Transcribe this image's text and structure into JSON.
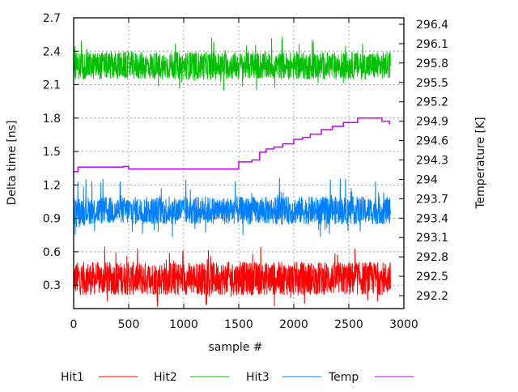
{
  "chart_data": {
    "type": "line",
    "xlabel": "sample #",
    "ylabel": "Delta time [ns]",
    "y2label": "Temperature [K]",
    "xlim": [
      0,
      3000
    ],
    "ylim": [
      0.09,
      2.7
    ],
    "y2lim": [
      292.0,
      296.5
    ],
    "xticks": [
      "0",
      "500",
      "1000",
      "1500",
      "2000",
      "2500",
      "3000"
    ],
    "yticks": [
      "0.3",
      "0.6",
      "0.9",
      "1.2",
      "1.5",
      "1.8",
      "2.1",
      "2.4",
      "2.7"
    ],
    "y2ticks": [
      "292.2",
      "292.5",
      "292.8",
      "293.1",
      "293.4",
      "293.7",
      "294",
      "294.3",
      "294.6",
      "294.9",
      "295.2",
      "295.5",
      "295.8",
      "296.1",
      "296.4"
    ],
    "grid": true,
    "legend_position": "bottom",
    "sample_count": 2880,
    "series": [
      {
        "name": "Hit1",
        "color": "#ff0000",
        "axis": "left",
        "mean": 0.36,
        "band": [
          0.22,
          0.52
        ],
        "extremes": [
          0.1,
          0.65
        ]
      },
      {
        "name": "Hit2",
        "color": "#00c000",
        "axis": "left",
        "mean": 2.27,
        "band": [
          2.15,
          2.4
        ],
        "extremes": [
          2.05,
          2.53
        ]
      },
      {
        "name": "Hit3",
        "color": "#0080ff",
        "axis": "left",
        "mean": 0.97,
        "band": [
          0.85,
          1.1
        ],
        "extremes": [
          0.72,
          1.27
        ]
      },
      {
        "name": "Temp",
        "color": "#c000ff",
        "axis": "right",
        "x": [
          0,
          40,
          450,
          500,
          1400,
          1500,
          1620,
          1690,
          1750,
          1820,
          1900,
          2000,
          2080,
          2150,
          2250,
          2350,
          2450,
          2580,
          2800,
          2870
        ],
        "y": [
          294.12,
          294.19,
          294.2,
          294.16,
          294.16,
          294.27,
          294.3,
          294.42,
          294.47,
          294.5,
          294.55,
          294.62,
          294.65,
          294.7,
          294.77,
          294.82,
          294.88,
          294.95,
          294.9,
          294.85
        ]
      }
    ]
  }
}
